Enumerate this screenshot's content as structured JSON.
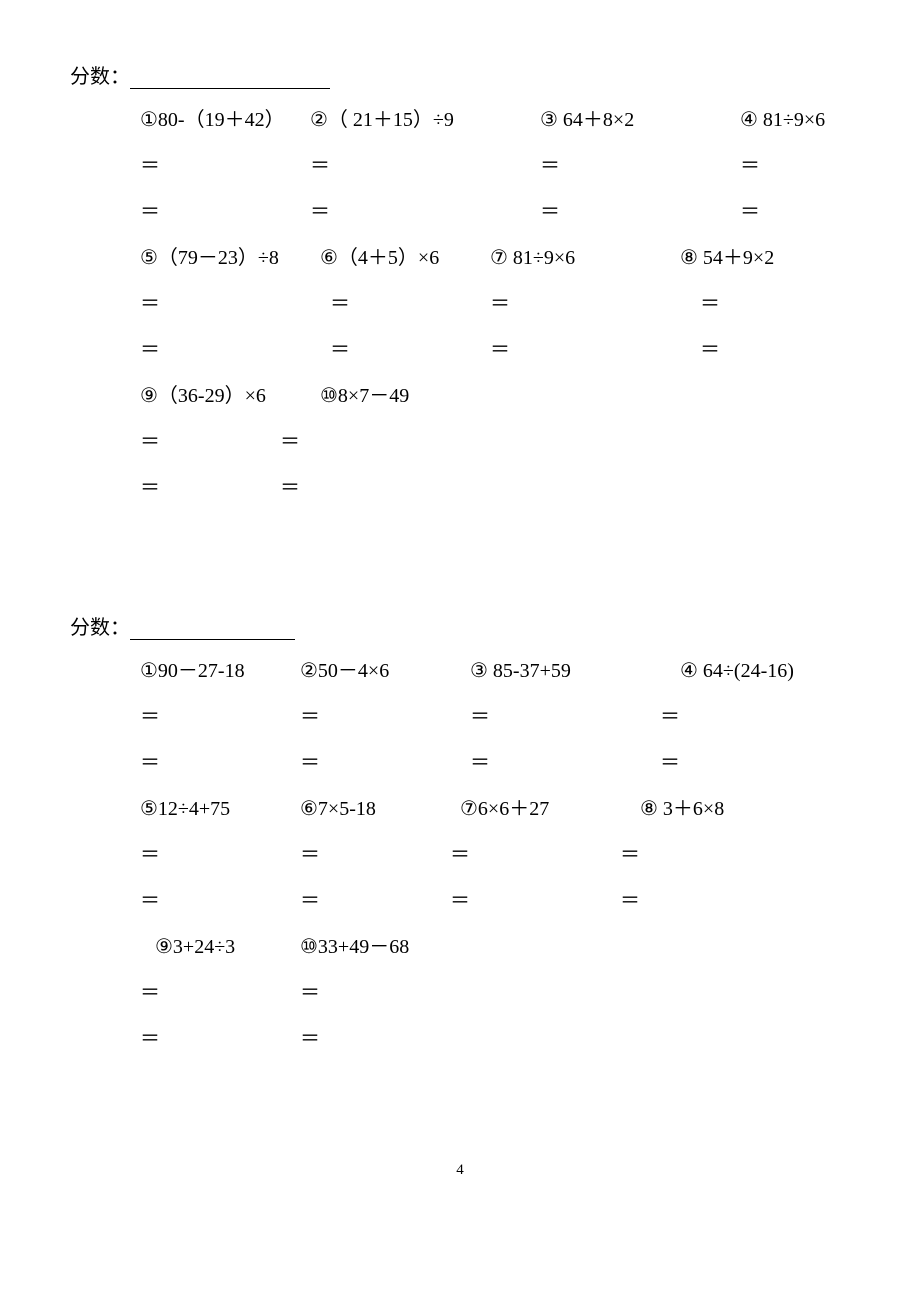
{
  "page": {
    "number": "4",
    "background": "#ffffff",
    "text_color": "#000000",
    "font_family": "SimSun",
    "base_fontsize": 20
  },
  "section1": {
    "score_label": "分数：",
    "underline_width": 200,
    "row1": {
      "offsets": [
        0,
        170,
        400,
        600
      ],
      "items": [
        "①80-（19＋42）",
        "②（ 21＋15）÷9",
        "③ 64＋8×2",
        "④ 81÷9×6"
      ]
    },
    "row1_eq": {
      "offsets": [
        0,
        170,
        400,
        600
      ],
      "vals": [
        "＝",
        "＝",
        "＝",
        "＝"
      ]
    },
    "row1_eq2": {
      "offsets": [
        0,
        170,
        400,
        600
      ],
      "vals": [
        "＝",
        "＝",
        "＝",
        "＝"
      ]
    },
    "row2": {
      "offsets": [
        0,
        180,
        350,
        540
      ],
      "items": [
        "⑤（79－23）÷8",
        "⑥（4＋5）×6",
        "⑦ 81÷9×6",
        "⑧  54＋9×2"
      ]
    },
    "row2_eq": {
      "offsets": [
        0,
        190,
        350,
        560
      ],
      "vals": [
        "＝",
        "＝",
        "＝",
        "＝"
      ]
    },
    "row2_eq2": {
      "offsets": [
        0,
        190,
        350,
        560
      ],
      "vals": [
        "＝",
        "＝",
        "＝",
        "＝"
      ]
    },
    "row3": {
      "offsets": [
        0,
        180
      ],
      "items": [
        "⑨（36-29）×6",
        "⑩8×7－49"
      ]
    },
    "row3_eq": {
      "offsets": [
        0,
        140
      ],
      "vals": [
        "＝",
        "＝"
      ]
    },
    "row3_eq2": {
      "offsets": [
        0,
        140
      ],
      "vals": [
        "＝",
        "＝"
      ]
    }
  },
  "section2": {
    "score_label": "分数：",
    "underline_width": 165,
    "row1": {
      "offsets": [
        0,
        160,
        330,
        540
      ],
      "items": [
        "①90－27-18",
        "②50－4×6",
        "③ 85-37+59",
        "④ 64÷(24-16)"
      ]
    },
    "row1_eq": {
      "offsets": [
        0,
        160,
        330,
        520
      ],
      "vals": [
        "＝",
        "＝",
        "＝",
        "＝"
      ]
    },
    "row1_eq2": {
      "offsets": [
        0,
        160,
        330,
        520
      ],
      "vals": [
        "＝",
        "＝",
        "＝",
        "＝"
      ]
    },
    "row2": {
      "offsets": [
        0,
        160,
        320,
        500
      ],
      "items": [
        "⑤12÷4+75",
        "⑥7×5-18",
        "⑦6×6＋27",
        "⑧ 3＋6×8"
      ]
    },
    "row2_eq": {
      "offsets": [
        0,
        160,
        310,
        480
      ],
      "vals": [
        "＝",
        "＝",
        "＝",
        "＝"
      ]
    },
    "row2_eq2": {
      "offsets": [
        0,
        160,
        310,
        480
      ],
      "vals": [
        "＝",
        "＝",
        "＝",
        "＝"
      ]
    },
    "row3": {
      "offsets": [
        15,
        160
      ],
      "items": [
        "⑨3+24÷3",
        "⑩33+49－68"
      ]
    },
    "row3_eq": {
      "offsets": [
        0,
        160
      ],
      "vals": [
        "＝",
        "＝"
      ]
    },
    "row3_eq2": {
      "offsets": [
        0,
        160
      ],
      "vals": [
        "＝",
        "＝"
      ]
    }
  }
}
